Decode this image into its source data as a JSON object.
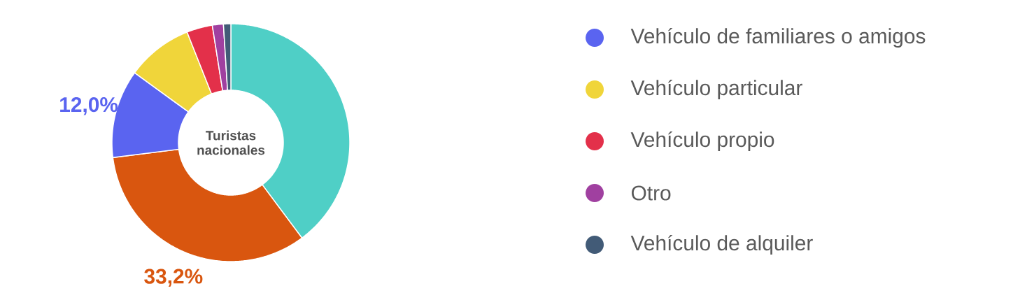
{
  "chart_data": {
    "type": "donut",
    "title": "Turistas nacionales",
    "categories": [
      null,
      null,
      "Vehículo de familiares o amigos",
      "Vehículo particular",
      "Vehículo propio",
      "Otro",
      "Vehículo de alquiler"
    ],
    "values": [
      39.8,
      33.2,
      12.0,
      9.0,
      3.5,
      1.5,
      1.0
    ],
    "colors": [
      "#4fcfc6",
      "#d9560f",
      "#5a64f0",
      "#f0d53a",
      "#e3304a",
      "#a040a0",
      "#425b77"
    ],
    "value_labels": [
      null,
      "33,2%",
      "12,0%",
      null,
      null,
      null,
      null
    ],
    "legend": "right"
  }
}
